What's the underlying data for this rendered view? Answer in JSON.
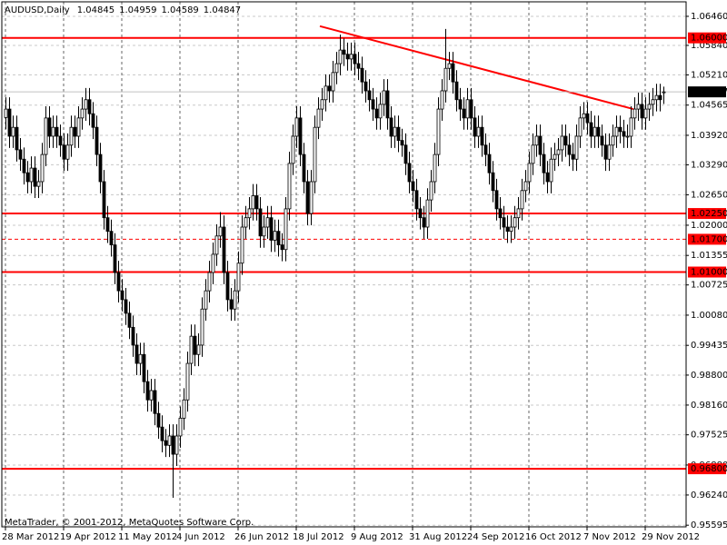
{
  "chart_data": {
    "type": "candlestick",
    "symbol": "AUDUSD,Daily",
    "watermark": "MetaTrader, © 2001-2012, MetaQuotes Software Corp.",
    "grid": true,
    "bull_color": "#ffffff",
    "bear_color": "#000000",
    "level_color": "#ff0000",
    "ylim": [
      0.9556,
      1.0677
    ],
    "yticks": [
      {
        "value": 1.0646,
        "label": "1.06460"
      },
      {
        "value": 1.0584,
        "label": "1.05840"
      },
      {
        "value": 1.0521,
        "label": "1.05210"
      },
      {
        "value": 1.04565,
        "label": "1.04565"
      },
      {
        "value": 1.0392,
        "label": "1.03920"
      },
      {
        "value": 1.0329,
        "label": "1.03290"
      },
      {
        "value": 1.0265,
        "label": "1.02650"
      },
      {
        "value": 1.02,
        "label": "1.02000"
      },
      {
        "value": 1.01355,
        "label": "1.01355"
      },
      {
        "value": 1.00725,
        "label": "1.00725"
      },
      {
        "value": 1.0008,
        "label": "1.00080"
      },
      {
        "value": 0.99435,
        "label": "0.99435"
      },
      {
        "value": 0.988,
        "label": "0.98800"
      },
      {
        "value": 0.9816,
        "label": "0.98160"
      },
      {
        "value": 0.97525,
        "label": "0.97525"
      },
      {
        "value": 0.9688,
        "label": "0.96880"
      },
      {
        "value": 0.9624,
        "label": "0.96240"
      },
      {
        "value": 0.95595,
        "label": "0.95595"
      }
    ],
    "levels": [
      {
        "value": 1.06,
        "label": "1.06000",
        "style": "solid"
      },
      {
        "value": 1.0225,
        "label": "1.02250",
        "style": "solid"
      },
      {
        "value": 1.017,
        "label": "1.01700",
        "style": "dashed"
      },
      {
        "value": 1.01,
        "label": "1.01000",
        "style": "solid"
      },
      {
        "value": 0.968,
        "label": "0.96800",
        "style": "solid"
      }
    ],
    "trendline": {
      "x": [
        86.5,
        172.75
      ],
      "y": [
        1.0625,
        1.0448
      ]
    },
    "categories": [
      "28 Mar 2012",
      null,
      null,
      null,
      null,
      null,
      null,
      null,
      null,
      null,
      null,
      null,
      null,
      null,
      null,
      null,
      "19 Apr 2012",
      null,
      null,
      null,
      null,
      null,
      null,
      null,
      null,
      null,
      null,
      null,
      null,
      null,
      null,
      null,
      "11 May 2012",
      null,
      null,
      null,
      null,
      null,
      null,
      null,
      null,
      null,
      null,
      null,
      null,
      null,
      null,
      null,
      "4 Jun 2012",
      null,
      null,
      null,
      null,
      null,
      null,
      null,
      null,
      null,
      null,
      null,
      null,
      null,
      null,
      null,
      "26 Jun 2012",
      null,
      null,
      null,
      null,
      null,
      null,
      null,
      null,
      null,
      null,
      null,
      null,
      null,
      null,
      null,
      "18 Jul 2012",
      null,
      null,
      null,
      null,
      null,
      null,
      null,
      null,
      null,
      null,
      null,
      null,
      null,
      null,
      null,
      "9 Aug 2012",
      null,
      null,
      null,
      null,
      null,
      null,
      null,
      null,
      null,
      null,
      null,
      null,
      null,
      null,
      null,
      "31 Aug 2012",
      null,
      null,
      null,
      null,
      null,
      null,
      null,
      null,
      null,
      null,
      null,
      null,
      null,
      null,
      null,
      "24 Sep 2012",
      null,
      null,
      null,
      null,
      null,
      null,
      null,
      null,
      null,
      null,
      null,
      null,
      null,
      null,
      null,
      "16 Oct 2012",
      null,
      null,
      null,
      null,
      null,
      null,
      null,
      null,
      null,
      null,
      null,
      null,
      null,
      null,
      null,
      "7 Nov 2012",
      null,
      null,
      null,
      null,
      null,
      null,
      null,
      null,
      null,
      null,
      null,
      null,
      null,
      null,
      null,
      "29 Nov 2012",
      null,
      null,
      null,
      null,
      null
    ],
    "ohlc": [
      [
        1.043,
        1.0473,
        1.0405,
        1.0448
      ],
      [
        1.0448,
        1.0473,
        1.0365,
        1.039
      ],
      [
        1.039,
        1.0434,
        1.0365,
        1.0409
      ],
      [
        1.0409,
        1.0434,
        1.0336,
        1.0361
      ],
      [
        1.0361,
        1.0386,
        1.0316,
        1.0341
      ],
      [
        1.0341,
        1.0366,
        1.0287,
        1.0312
      ],
      [
        1.0312,
        1.0337,
        1.0268,
        1.0293
      ],
      [
        1.0293,
        1.0347,
        1.0268,
        1.0322
      ],
      [
        1.0322,
        1.0347,
        1.0258,
        1.0283
      ],
      [
        1.0283,
        1.0318,
        1.0258,
        1.0293
      ],
      [
        1.0293,
        1.0376,
        1.0268,
        1.0351
      ],
      [
        1.0351,
        1.0454,
        1.0326,
        1.0429
      ],
      [
        1.0429,
        1.0454,
        1.0365,
        1.039
      ],
      [
        1.039,
        1.0434,
        1.0365,
        1.0409
      ],
      [
        1.0409,
        1.0434,
        1.0365,
        1.039
      ],
      [
        1.039,
        1.0415,
        1.0346,
        1.0371
      ],
      [
        1.0371,
        1.0396,
        1.0316,
        1.0341
      ],
      [
        1.0341,
        1.0396,
        1.0316,
        1.0371
      ],
      [
        1.0371,
        1.0434,
        1.0346,
        1.0409
      ],
      [
        1.0409,
        1.0434,
        1.0365,
        1.039
      ],
      [
        1.039,
        1.0454,
        1.0365,
        1.0429
      ],
      [
        1.0429,
        1.0473,
        1.0404,
        1.0448
      ],
      [
        1.0448,
        1.0493,
        1.0423,
        1.0468
      ],
      [
        1.0468,
        1.0493,
        1.0413,
        1.0438
      ],
      [
        1.0438,
        1.0463,
        1.0384,
        1.0409
      ],
      [
        1.0409,
        1.0434,
        1.0326,
        1.0351
      ],
      [
        1.0351,
        1.0376,
        1.0268,
        1.0293
      ],
      [
        1.0293,
        1.0318,
        1.0191,
        1.0216
      ],
      [
        1.0216,
        1.0241,
        1.0162,
        1.0187
      ],
      [
        1.0187,
        1.0212,
        1.0133,
        1.0158
      ],
      [
        1.0158,
        1.0183,
        1.0074,
        1.0099
      ],
      [
        1.0099,
        1.0124,
        1.0035,
        1.006
      ],
      [
        1.006,
        1.0085,
        1.0016,
        1.0041
      ],
      [
        1.0041,
        1.0066,
        0.9987,
        1.0012
      ],
      [
        1.0012,
        1.0037,
        0.9957,
        0.9982
      ],
      [
        0.9982,
        1.0007,
        0.9919,
        0.9944
      ],
      [
        0.9944,
        0.9969,
        0.988,
        0.9905
      ],
      [
        0.9905,
        0.9949,
        0.988,
        0.9924
      ],
      [
        0.9924,
        0.9949,
        0.9841,
        0.9866
      ],
      [
        0.9866,
        0.9891,
        0.9802,
        0.9827
      ],
      [
        0.9827,
        0.9872,
        0.9802,
        0.9847
      ],
      [
        0.9847,
        0.9872,
        0.9773,
        0.9798
      ],
      [
        0.9798,
        0.9823,
        0.9744,
        0.9769
      ],
      [
        0.9769,
        0.9794,
        0.9715,
        0.974
      ],
      [
        0.974,
        0.9765,
        0.9705,
        0.973
      ],
      [
        0.973,
        0.9775,
        0.9705,
        0.975
      ],
      [
        0.975,
        0.9775,
        0.9618,
        0.9711
      ],
      [
        0.9711,
        0.9775,
        0.9686,
        0.975
      ],
      [
        0.975,
        0.9813,
        0.9725,
        0.9788
      ],
      [
        0.9788,
        0.9852,
        0.9763,
        0.9827
      ],
      [
        0.9827,
        0.993,
        0.9802,
        0.9905
      ],
      [
        0.9905,
        0.9988,
        0.988,
        0.9963
      ],
      [
        0.9963,
        0.9988,
        0.9899,
        0.9924
      ],
      [
        0.9924,
        0.9969,
        0.9899,
        0.9944
      ],
      [
        0.9944,
        1.0046,
        0.9919,
        1.0021
      ],
      [
        1.0021,
        1.0085,
        0.9996,
        1.006
      ],
      [
        1.006,
        1.0124,
        1.0035,
        1.0099
      ],
      [
        1.0099,
        1.0163,
        1.0074,
        1.0138
      ],
      [
        1.0138,
        1.0202,
        1.0113,
        1.0177
      ],
      [
        1.0177,
        1.0228,
        1.0152,
        1.0196
      ],
      [
        1.0196,
        1.0221,
        1.0074,
        1.0099
      ],
      [
        1.0099,
        1.0124,
        1.0016,
        1.0041
      ],
      [
        1.0041,
        1.0066,
        0.9996,
        1.0021
      ],
      [
        1.0021,
        1.0085,
        0.9996,
        1.006
      ],
      [
        1.006,
        1.0144,
        1.0035,
        1.0119
      ],
      [
        1.0119,
        1.0221,
        1.0094,
        1.0196
      ],
      [
        1.0196,
        1.0241,
        1.0171,
        1.0216
      ],
      [
        1.0216,
        1.026,
        1.0191,
        1.0235
      ],
      [
        1.0235,
        1.0288,
        1.021,
        1.0263
      ],
      [
        1.0263,
        1.0288,
        1.021,
        1.0235
      ],
      [
        1.0235,
        1.026,
        1.0152,
        1.0177
      ],
      [
        1.0177,
        1.0221,
        1.0152,
        1.0196
      ],
      [
        1.0196,
        1.0241,
        1.0171,
        1.0216
      ],
      [
        1.0216,
        1.0241,
        1.0143,
        1.0168
      ],
      [
        1.0168,
        1.0212,
        1.0143,
        1.0187
      ],
      [
        1.0187,
        1.0212,
        1.0133,
        1.0158
      ],
      [
        1.0158,
        1.0183,
        1.0123,
        1.0148
      ],
      [
        1.0148,
        1.026,
        1.0123,
        1.0235
      ],
      [
        1.0235,
        1.0357,
        1.021,
        1.0332
      ],
      [
        1.0332,
        1.0415,
        1.0307,
        1.039
      ],
      [
        1.039,
        1.0454,
        1.0365,
        1.0429
      ],
      [
        1.0429,
        1.0454,
        1.0326,
        1.0351
      ],
      [
        1.0351,
        1.0376,
        1.0268,
        1.0293
      ],
      [
        1.0293,
        1.0318,
        1.02,
        1.0225
      ],
      [
        1.0225,
        1.0318,
        1.02,
        1.0293
      ],
      [
        1.0293,
        1.0434,
        1.0268,
        1.0409
      ],
      [
        1.0409,
        1.0473,
        1.0384,
        1.0448
      ],
      [
        1.0448,
        1.0493,
        1.0423,
        1.0468
      ],
      [
        1.0468,
        1.0522,
        1.0443,
        1.0497
      ],
      [
        1.0497,
        1.0522,
        1.0462,
        1.0487
      ],
      [
        1.0487,
        1.0551,
        1.0462,
        1.0526
      ],
      [
        1.0526,
        1.057,
        1.0501,
        1.0545
      ],
      [
        1.0545,
        1.0607,
        1.052,
        1.0574
      ],
      [
        1.0574,
        1.0599,
        1.054,
        1.0565
      ],
      [
        1.0565,
        1.059,
        1.053,
        1.0555
      ],
      [
        1.0555,
        1.059,
        1.053,
        1.0565
      ],
      [
        1.0565,
        1.059,
        1.052,
        1.0545
      ],
      [
        1.0545,
        1.057,
        1.051,
        1.0535
      ],
      [
        1.0535,
        1.056,
        1.0481,
        1.0506
      ],
      [
        1.0506,
        1.0531,
        1.0462,
        1.0487
      ],
      [
        1.0487,
        1.0512,
        1.0443,
        1.0468
      ],
      [
        1.0468,
        1.0493,
        1.0423,
        1.0448
      ],
      [
        1.0448,
        1.0473,
        1.0404,
        1.0429
      ],
      [
        1.0429,
        1.0483,
        1.0404,
        1.0458
      ],
      [
        1.0458,
        1.0512,
        1.0433,
        1.0487
      ],
      [
        1.0487,
        1.0512,
        1.0404,
        1.0429
      ],
      [
        1.0429,
        1.0454,
        1.0365,
        1.039
      ],
      [
        1.039,
        1.0434,
        1.0365,
        1.0409
      ],
      [
        1.0409,
        1.0434,
        1.0356,
        1.0381
      ],
      [
        1.0381,
        1.0406,
        1.0346,
        1.0371
      ],
      [
        1.0371,
        1.0396,
        1.0307,
        1.0332
      ],
      [
        1.0332,
        1.0357,
        1.0268,
        1.0293
      ],
      [
        1.0293,
        1.0318,
        1.0249,
        1.0274
      ],
      [
        1.0274,
        1.0299,
        1.021,
        1.0235
      ],
      [
        1.0235,
        1.026,
        1.0191,
        1.0216
      ],
      [
        1.0216,
        1.0241,
        1.0171,
        1.0196
      ],
      [
        1.0196,
        1.0279,
        1.0171,
        1.0254
      ],
      [
        1.0254,
        1.0318,
        1.0229,
        1.0293
      ],
      [
        1.0293,
        1.0376,
        1.0268,
        1.0351
      ],
      [
        1.0351,
        1.0473,
        1.0326,
        1.0448
      ],
      [
        1.0448,
        1.0512,
        1.0423,
        1.0487
      ],
      [
        1.0487,
        1.0619,
        1.0462,
        1.0535
      ],
      [
        1.0535,
        1.057,
        1.051,
        1.0545
      ],
      [
        1.0545,
        1.057,
        1.0481,
        1.0506
      ],
      [
        1.0506,
        1.0531,
        1.0443,
        1.0468
      ],
      [
        1.0468,
        1.0493,
        1.0423,
        1.0448
      ],
      [
        1.0448,
        1.0473,
        1.0404,
        1.0429
      ],
      [
        1.0429,
        1.0493,
        1.0404,
        1.0468
      ],
      [
        1.0468,
        1.0493,
        1.0404,
        1.0429
      ],
      [
        1.0429,
        1.0454,
        1.0365,
        1.039
      ],
      [
        1.039,
        1.0434,
        1.0365,
        1.0409
      ],
      [
        1.0409,
        1.0434,
        1.0346,
        1.0371
      ],
      [
        1.0371,
        1.0396,
        1.0326,
        1.0351
      ],
      [
        1.0351,
        1.0376,
        1.0287,
        1.0312
      ],
      [
        1.0312,
        1.0337,
        1.0249,
        1.0274
      ],
      [
        1.0274,
        1.0299,
        1.021,
        1.0235
      ],
      [
        1.0235,
        1.026,
        1.0191,
        1.0216
      ],
      [
        1.0216,
        1.0241,
        1.0171,
        1.0196
      ],
      [
        1.0196,
        1.0221,
        1.0162,
        1.0187
      ],
      [
        1.0187,
        1.0221,
        1.0162,
        1.0196
      ],
      [
        1.0196,
        1.0241,
        1.0171,
        1.0216
      ],
      [
        1.0216,
        1.026,
        1.0191,
        1.0235
      ],
      [
        1.0235,
        1.0299,
        1.021,
        1.0274
      ],
      [
        1.0274,
        1.0318,
        1.0249,
        1.0293
      ],
      [
        1.0293,
        1.0357,
        1.0268,
        1.0332
      ],
      [
        1.0332,
        1.0396,
        1.0307,
        1.0371
      ],
      [
        1.0371,
        1.0415,
        1.0346,
        1.039
      ],
      [
        1.039,
        1.0415,
        1.0326,
        1.0351
      ],
      [
        1.0351,
        1.0376,
        1.0287,
        1.0312
      ],
      [
        1.0312,
        1.0337,
        1.0268,
        1.0293
      ],
      [
        1.0293,
        1.0366,
        1.0268,
        1.0341
      ],
      [
        1.0341,
        1.0376,
        1.0316,
        1.0351
      ],
      [
        1.0351,
        1.0386,
        1.0326,
        1.0361
      ],
      [
        1.0361,
        1.0415,
        1.0336,
        1.039
      ],
      [
        1.039,
        1.0415,
        1.0346,
        1.0371
      ],
      [
        1.0371,
        1.0396,
        1.0326,
        1.0351
      ],
      [
        1.0351,
        1.0376,
        1.0316,
        1.0341
      ],
      [
        1.0341,
        1.0415,
        1.0316,
        1.039
      ],
      [
        1.039,
        1.0454,
        1.0365,
        1.0429
      ],
      [
        1.0429,
        1.0463,
        1.0404,
        1.0438
      ],
      [
        1.0438,
        1.0463,
        1.0394,
        1.0419
      ],
      [
        1.0419,
        1.0444,
        1.0365,
        1.039
      ],
      [
        1.039,
        1.0434,
        1.0365,
        1.0409
      ],
      [
        1.0409,
        1.0434,
        1.0365,
        1.039
      ],
      [
        1.039,
        1.0415,
        1.0346,
        1.0371
      ],
      [
        1.0371,
        1.0396,
        1.0316,
        1.0341
      ],
      [
        1.0341,
        1.0396,
        1.0316,
        1.0371
      ],
      [
        1.0371,
        1.0415,
        1.0346,
        1.039
      ],
      [
        1.039,
        1.0434,
        1.0365,
        1.0409
      ],
      [
        1.0409,
        1.0434,
        1.0375,
        1.04
      ],
      [
        1.04,
        1.0425,
        1.0365,
        1.039
      ],
      [
        1.039,
        1.0415,
        1.0365,
        1.039
      ],
      [
        1.039,
        1.0454,
        1.0365,
        1.0429
      ],
      [
        1.0429,
        1.0473,
        1.0404,
        1.0448
      ],
      [
        1.0448,
        1.0483,
        1.0423,
        1.0458
      ],
      [
        1.0458,
        1.0483,
        1.0404,
        1.0429
      ],
      [
        1.0429,
        1.0473,
        1.0404,
        1.0448
      ],
      [
        1.0448,
        1.0483,
        1.0423,
        1.0458
      ],
      [
        1.0458,
        1.0493,
        1.0433,
        1.0468
      ],
      [
        1.0468,
        1.0502,
        1.0443,
        1.0477
      ],
      [
        1.0477,
        1.0502,
        1.0443,
        1.0468
      ],
      [
        1.04845,
        1.04959,
        1.04589,
        1.04847
      ]
    ]
  }
}
